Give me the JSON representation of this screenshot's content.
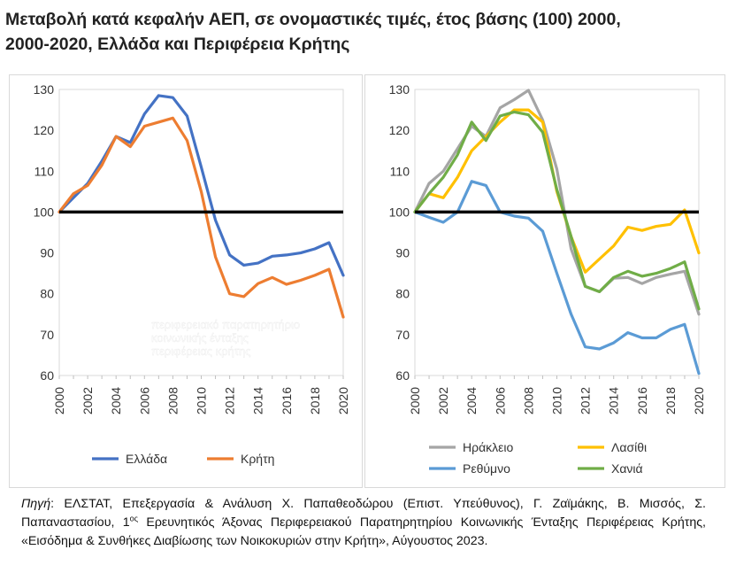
{
  "title_line1": "Μεταβολή κατά κεφαλήν ΑΕΠ, σε ονομαστικές τιμές, έτος βάσης (100) 2000,",
  "title_line2": "2000-2020, Ελλάδα και Περιφέρεια Κρήτης",
  "watermark": {
    "line1": "περιφερειακό παρατηρητήριο",
    "line2": "κοινωνικής ένταξης",
    "line3": "περιφέρειας κρήτης"
  },
  "source": {
    "label": "Πηγή",
    "part1": ": ΕΛΣΤΑΤ,  Επεξεργασία & Ανάλυση Χ. Παπαθεοδώρου (Επιστ. Υπεύθυνος), Γ. Ζαϊμάκης, Β. Μισσός, Σ. Παπαναστασίου, 1",
    "sup": "ος",
    "part2": " Ερευνητικός Άξονας Περιφερειακού Παρατηρητηρίου Κοινωνικής Ένταξης Περιφέρειας Κρήτης, «Εισόδημα & Συνθήκες Διαβίωσης των Νοικοκυριών στην Κρήτη», Αύγουστος 2023."
  },
  "chart_data": [
    {
      "type": "line",
      "ylim": [
        60,
        130
      ],
      "yticks": [
        "60",
        "70",
        "80",
        "90",
        "100",
        "110",
        "120",
        "130"
      ],
      "x": [
        2000,
        2001,
        2002,
        2003,
        2004,
        2005,
        2006,
        2007,
        2008,
        2009,
        2010,
        2011,
        2012,
        2013,
        2014,
        2015,
        2016,
        2017,
        2018,
        2019,
        2020
      ],
      "xticks": [
        "2000",
        "2002",
        "2004",
        "2006",
        "2008",
        "2010",
        "2012",
        "2014",
        "2016",
        "2018",
        "2020"
      ],
      "reference_line": 100,
      "legend_position": "bottom",
      "series": [
        {
          "name": "Ελλάδα",
          "color": "#4472C4",
          "values": [
            100,
            103.5,
            107,
            112.5,
            118.5,
            117,
            124,
            128.5,
            128,
            123.5,
            111,
            98,
            89.5,
            87,
            87.5,
            89.2,
            89.5,
            90,
            91,
            92.5,
            84.5
          ]
        },
        {
          "name": "Κρήτη",
          "color": "#ED7D31",
          "values": [
            100,
            104.5,
            106.5,
            111.5,
            118.5,
            116,
            121,
            122,
            123,
            117.5,
            105,
            89,
            80,
            79.3,
            82.5,
            84,
            82.3,
            83.3,
            84.5,
            86,
            74.3
          ]
        }
      ]
    },
    {
      "type": "line",
      "ylim": [
        60,
        130
      ],
      "yticks": [
        "60",
        "70",
        "80",
        "90",
        "100",
        "110",
        "120",
        "130"
      ],
      "x": [
        2000,
        2001,
        2002,
        2003,
        2004,
        2005,
        2006,
        2007,
        2008,
        2009,
        2010,
        2011,
        2012,
        2013,
        2014,
        2015,
        2016,
        2017,
        2018,
        2019,
        2020
      ],
      "xticks": [
        "2000",
        "2002",
        "2004",
        "2006",
        "2008",
        "2010",
        "2012",
        "2014",
        "2016",
        "2018",
        "2020"
      ],
      "reference_line": 100,
      "legend_position": "bottom",
      "series": [
        {
          "name": "Ηράκλειο",
          "color": "#A5A5A5",
          "values": [
            100,
            107,
            110,
            115.5,
            121,
            118.5,
            125.5,
            127.5,
            129.8,
            122.5,
            110.5,
            91,
            81.8,
            80.5,
            83.8,
            84,
            82.5,
            84,
            84.8,
            85.5,
            75
          ]
        },
        {
          "name": "Λασίθι",
          "color": "#FFC000",
          "values": [
            100,
            104.5,
            103.5,
            108.5,
            115,
            118.5,
            122,
            125,
            125,
            122,
            105,
            94,
            85.3,
            88.5,
            91.7,
            96.3,
            95.5,
            96.5,
            97,
            100.5,
            90
          ]
        },
        {
          "name": "Ρεθύμνο",
          "color": "#5B9BD5",
          "values": [
            100,
            98.7,
            97.5,
            100,
            107.5,
            106.5,
            100,
            99,
            98.5,
            95.3,
            85,
            75,
            67,
            66.5,
            68,
            70.5,
            69.2,
            69.2,
            71.3,
            72.5,
            60.5
          ]
        },
        {
          "name": "Χανιά",
          "color": "#70AD47",
          "values": [
            100,
            104.5,
            108.5,
            114,
            122,
            117.5,
            123.5,
            124.5,
            123.8,
            119.5,
            105.5,
            94,
            81.8,
            80.5,
            84,
            85.5,
            84.3,
            85,
            86.2,
            87.8,
            76.3
          ]
        }
      ]
    }
  ]
}
